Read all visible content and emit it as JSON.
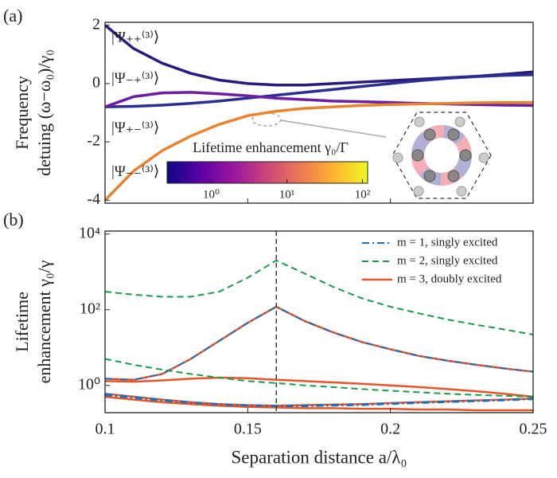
{
  "chart_data": [
    {
      "type": "line",
      "panel_label": "(a)",
      "ylabel": [
        "Frequency",
        "detuing (ω−ω₀)/γ₀"
      ],
      "xlim": [
        0.1,
        0.25
      ],
      "xticks": [
        0.1,
        0.15,
        0.2,
        0.25
      ],
      "ylim": [
        -4.1,
        2.1
      ],
      "yticks": [
        -4,
        -2,
        0,
        2
      ],
      "x": [
        0.1,
        0.11,
        0.12,
        0.13,
        0.14,
        0.15,
        0.16,
        0.17,
        0.18,
        0.19,
        0.2,
        0.21,
        0.22,
        0.23,
        0.24,
        0.25
      ],
      "series": [
        {
          "color": "#2b1a7d",
          "values": [
            2,
            1.2,
            0.7,
            0.35,
            0.12,
            0.0,
            -0.05,
            -0.05,
            0,
            0.05,
            0.1,
            0.15,
            0.2,
            0.25,
            0.32,
            0.4
          ]
        },
        {
          "color": "#2a2f8f",
          "values": [
            -0.8,
            -0.78,
            -0.74,
            -0.68,
            -0.6,
            -0.5,
            -0.4,
            -0.3,
            -0.2,
            -0.1,
            0,
            0.1,
            0.18,
            0.24,
            0.28,
            0.3
          ]
        },
        {
          "color": "#6a1fa0",
          "values": [
            -0.8,
            -0.45,
            -0.32,
            -0.3,
            -0.35,
            -0.42,
            -0.5,
            -0.55,
            -0.6,
            -0.62,
            -0.65,
            -0.68,
            -0.7,
            -0.72,
            -0.74,
            -0.75
          ]
        },
        {
          "color": "#e8842f",
          "values": [
            -4,
            -3.0,
            -2.3,
            -1.8,
            -1.4,
            -1.1,
            -0.95,
            -0.85,
            -0.8,
            -0.75,
            -0.72,
            -0.7,
            -0.68,
            -0.66,
            -0.65,
            -0.65
          ]
        }
      ],
      "kets": [
        "|Ψ₊₊⁽³⁾⟩",
        "|Ψ₋₊⁽³⁾⟩",
        "|Ψ₊₋⁽³⁾⟩",
        "|Ψ₋₋⁽³⁾⟩"
      ],
      "colorbar": {
        "label": "Lifetime enhancement γ₀/Γ",
        "log": true,
        "lim": [
          0.26,
          117
        ],
        "ticks": [
          {
            "value": 1,
            "label": "10⁰"
          },
          {
            "value": 10,
            "label": "10¹"
          },
          {
            "value": 100,
            "label": "10²"
          }
        ],
        "colors": [
          "#0d0887",
          "#5c01a6",
          "#9c179e",
          "#cc4778",
          "#ed7953",
          "#fdb42f",
          "#f0f921"
        ]
      }
    },
    {
      "type": "line",
      "panel_label": "(b)",
      "ylabel": [
        "Lifetime",
        "enhancement γ₀/γ"
      ],
      "xlabel": "Separation distance a/λ₀",
      "xlim": [
        0.1,
        0.25
      ],
      "xticks": [
        0.1,
        0.15,
        0.2,
        0.25
      ],
      "log_y": true,
      "ylim": [
        0.19,
        12000
      ],
      "yticks": [
        {
          "value": 1,
          "label": "10⁰"
        },
        {
          "value": 100,
          "label": "10²"
        },
        {
          "value": 10000,
          "label": "10⁴"
        }
      ],
      "vline": 0.16,
      "legend": "upper right",
      "x": [
        0.1,
        0.11,
        0.12,
        0.13,
        0.14,
        0.15,
        0.16,
        0.17,
        0.18,
        0.19,
        0.2,
        0.21,
        0.22,
        0.23,
        0.24,
        0.25
      ],
      "series": [
        {
          "name": "m = 3, doubly excited",
          "color": "#e8552a",
          "dash": "solid",
          "width": 2.5,
          "curves": [
            [
              1.5,
              1.4,
              2,
              5,
              15,
              45,
              120,
              50,
              25,
              14,
              9,
              6,
              4.5,
              3.5,
              2.8,
              2.3
            ],
            [
              1.3,
              1.25,
              1.35,
              1.5,
              1.6,
              1.55,
              1.4,
              1.3,
              1.2,
              1.1,
              1.0,
              0.9,
              0.8,
              0.7,
              0.6,
              0.5
            ],
            [
              0.6,
              0.5,
              0.42,
              0.36,
              0.32,
              0.3,
              0.29,
              0.3,
              0.31,
              0.32,
              0.34,
              0.36,
              0.38,
              0.4,
              0.42,
              0.45
            ],
            [
              0.5,
              0.42,
              0.36,
              0.32,
              0.29,
              0.27,
              0.26,
              0.25,
              0.25,
              0.24,
              0.24,
              0.23,
              0.23,
              0.22,
              0.22,
              0.22
            ]
          ]
        },
        {
          "name": "m = 1, singly excited",
          "color": "#1f6fb5",
          "dash": "dashdot",
          "width": 2,
          "curves": [
            [
              1.5,
              1.4,
              2,
              5,
              15,
              45,
              120,
              50,
              25,
              14,
              9,
              6,
              4.5,
              3.5,
              2.8,
              2.3
            ],
            [
              0.6,
              0.5,
              0.42,
              0.36,
              0.32,
              0.3,
              0.29,
              0.3,
              0.31,
              0.32,
              0.34,
              0.36,
              0.38,
              0.4,
              0.42,
              0.45
            ],
            [
              0.55,
              0.46,
              0.39,
              0.34,
              0.31,
              0.29,
              0.28,
              0.28,
              0.29,
              0.3,
              0.32,
              0.34,
              0.36,
              0.38,
              0.4,
              0.43
            ]
          ]
        },
        {
          "name": "m = 2, singly excited",
          "color": "#1a9a4a",
          "dash": "dashed",
          "width": 2,
          "curves": [
            [
              300,
              250,
              220,
              220,
              300,
              700,
              2000,
              900,
              400,
              200,
              120,
              80,
              55,
              40,
              30,
              22
            ],
            [
              5,
              3.5,
              2.6,
              2.0,
              1.6,
              1.3,
              1.15,
              1.0,
              0.9,
              0.8,
              0.72,
              0.66,
              0.6,
              0.56,
              0.53,
              0.5
            ]
          ]
        }
      ]
    }
  ]
}
